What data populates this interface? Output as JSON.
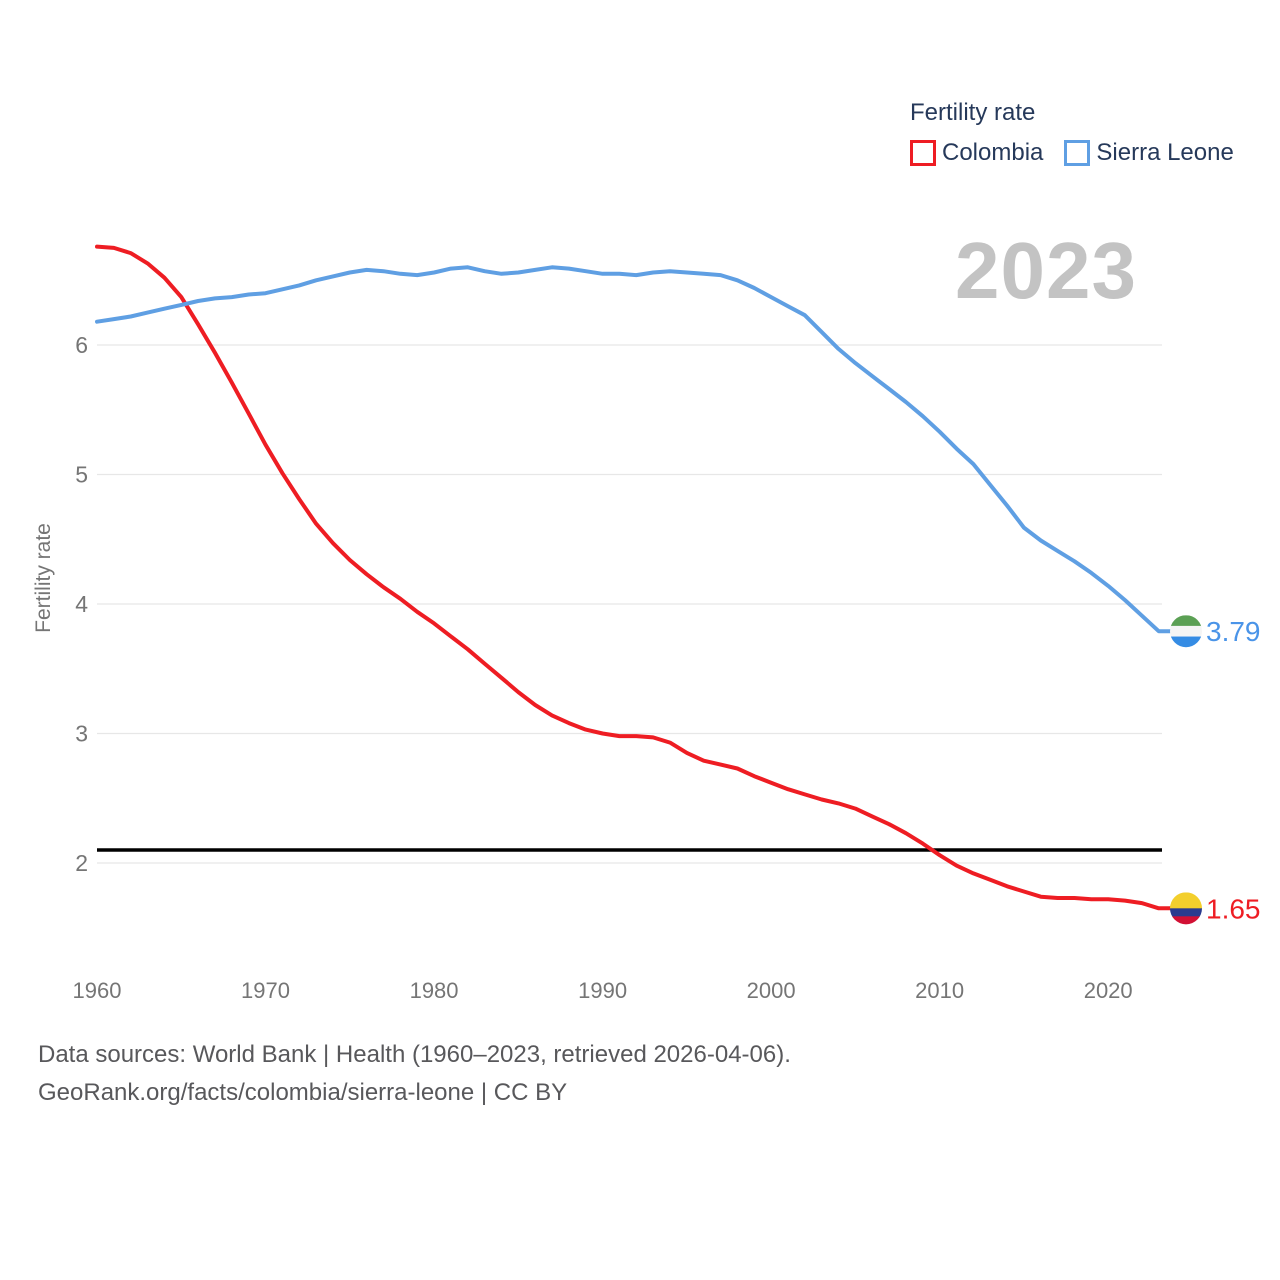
{
  "watermark": "2023",
  "legend": {
    "title": "Fertility rate",
    "items": [
      {
        "label": "Colombia",
        "color": "#ee1d23"
      },
      {
        "label": "Sierra Leone",
        "color": "#5f9fe3"
      }
    ]
  },
  "chart_data": {
    "type": "line",
    "title": "Fertility rate",
    "xlabel": "",
    "ylabel": "Fertility rate",
    "grid": true,
    "legend_position": "top-right",
    "xlim": [
      1960,
      2023
    ],
    "ylim": [
      1.5,
      6.9
    ],
    "xticks": [
      1960,
      1970,
      1980,
      1990,
      2000,
      2010,
      2020
    ],
    "yticks": [
      2,
      3,
      4,
      5,
      6
    ],
    "reference_line": {
      "value": 2.1,
      "color": "#000000"
    },
    "x": [
      1960,
      1961,
      1962,
      1963,
      1964,
      1965,
      1966,
      1967,
      1968,
      1969,
      1970,
      1971,
      1972,
      1973,
      1974,
      1975,
      1976,
      1977,
      1978,
      1979,
      1980,
      1981,
      1982,
      1983,
      1984,
      1985,
      1986,
      1987,
      1988,
      1989,
      1990,
      1991,
      1992,
      1993,
      1994,
      1995,
      1996,
      1997,
      1998,
      1999,
      2000,
      2001,
      2002,
      2003,
      2004,
      2005,
      2006,
      2007,
      2008,
      2009,
      2010,
      2011,
      2012,
      2013,
      2014,
      2015,
      2016,
      2017,
      2018,
      2019,
      2020,
      2021,
      2022,
      2023
    ],
    "series": [
      {
        "name": "Colombia",
        "color": "#ee1d23",
        "label_color": "#ee1d23",
        "end_label": "1.65",
        "end_value": 1.65,
        "flag_icon": "colombia-flag-icon",
        "flag_stripes": [
          {
            "color": "#f3cf2c",
            "fraction": 0.5
          },
          {
            "color": "#2a3b8f",
            "fraction": 0.25
          },
          {
            "color": "#d21034",
            "fraction": 0.25
          }
        ],
        "values": [
          6.76,
          6.75,
          6.71,
          6.63,
          6.52,
          6.37,
          6.16,
          5.94,
          5.71,
          5.47,
          5.23,
          5.01,
          4.81,
          4.62,
          4.47,
          4.34,
          4.23,
          4.13,
          4.04,
          3.94,
          3.85,
          3.75,
          3.65,
          3.54,
          3.43,
          3.32,
          3.22,
          3.14,
          3.08,
          3.03,
          3.0,
          2.98,
          2.98,
          2.97,
          2.93,
          2.85,
          2.79,
          2.76,
          2.73,
          2.67,
          2.62,
          2.57,
          2.53,
          2.49,
          2.46,
          2.42,
          2.36,
          2.3,
          2.23,
          2.15,
          2.06,
          1.98,
          1.92,
          1.87,
          1.82,
          1.78,
          1.74,
          1.73,
          1.73,
          1.72,
          1.72,
          1.71,
          1.69,
          1.65
        ]
      },
      {
        "name": "Sierra Leone",
        "color": "#5f9fe3",
        "label_color": "#4a94e8",
        "end_label": "3.79",
        "end_value": 3.79,
        "flag_icon": "sierra-leone-flag-icon",
        "flag_stripes": [
          {
            "color": "#5ba054",
            "fraction": 0.334
          },
          {
            "color": "#f5f5f5",
            "fraction": 0.333
          },
          {
            "color": "#358ce4",
            "fraction": 0.333
          }
        ],
        "values": [
          6.18,
          6.2,
          6.22,
          6.25,
          6.28,
          6.31,
          6.34,
          6.36,
          6.37,
          6.39,
          6.4,
          6.43,
          6.46,
          6.5,
          6.53,
          6.56,
          6.58,
          6.57,
          6.55,
          6.54,
          6.56,
          6.59,
          6.6,
          6.57,
          6.55,
          6.56,
          6.58,
          6.6,
          6.59,
          6.57,
          6.55,
          6.55,
          6.54,
          6.56,
          6.57,
          6.56,
          6.55,
          6.54,
          6.5,
          6.44,
          6.37,
          6.3,
          6.23,
          6.1,
          5.97,
          5.86,
          5.76,
          5.66,
          5.56,
          5.45,
          5.33,
          5.2,
          5.08,
          4.92,
          4.76,
          4.59,
          4.49,
          4.41,
          4.33,
          4.24,
          4.14,
          4.03,
          3.91,
          3.79
        ]
      }
    ]
  },
  "footer": {
    "line1": "Data sources: World Bank | Health (1960–2023, retrieved 2026-04-06).",
    "line2": "GeoRank.org/facts/colombia/sierra-leone | CC BY"
  }
}
